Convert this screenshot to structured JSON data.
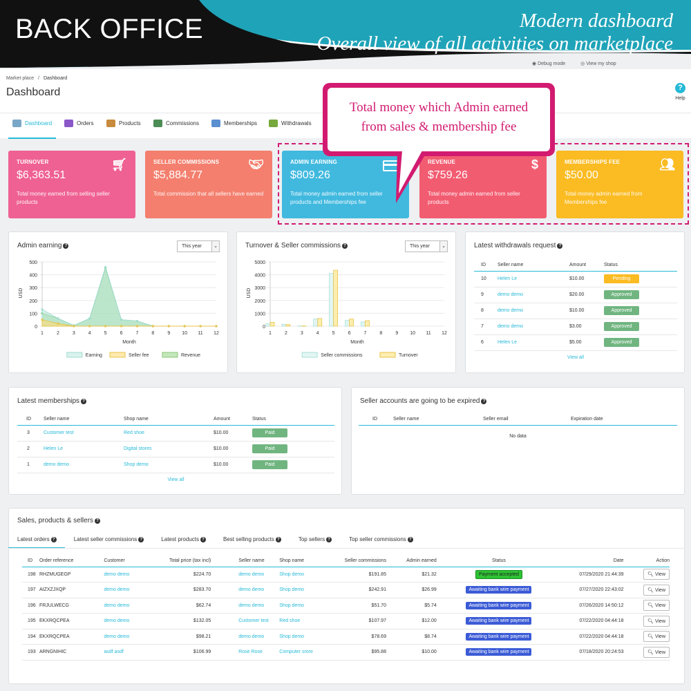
{
  "banner": {
    "title": "BACK OFFICE",
    "sub1": "Modern dashboard",
    "sub2": "Overall view of all activities on marketplace"
  },
  "topbar": {
    "debug": "Debug mode",
    "view_shop": "View my shop"
  },
  "breadcrumb": {
    "parent": "Market place",
    "sep": "/",
    "current": "Dashboard"
  },
  "page_title": "Dashboard",
  "help": "Help",
  "tabs": [
    {
      "label": "Dashboard"
    },
    {
      "label": "Orders"
    },
    {
      "label": "Products"
    },
    {
      "label": "Commissions"
    },
    {
      "label": "Memberships"
    },
    {
      "label": "Withdrawals"
    }
  ],
  "callout": {
    "line1": "Total money which Admin earned",
    "line2": "from sales & membership fee"
  },
  "kpis": [
    {
      "label": "TURNOVER",
      "value": "$6,363.51",
      "desc": "Total money earned from selling seller products",
      "color": "#ef6192",
      "icon": "cart-icon"
    },
    {
      "label": "SELLER COMMISSIONS",
      "value": "$5,884.77",
      "desc": "Total commission that all sellers have earned",
      "color": "#f47f6e",
      "icon": "handshake-icon"
    },
    {
      "label": "ADMIN EARNING",
      "value": "$809.26",
      "desc": "Total money admin earned from seller products and Memberships fee",
      "color": "#41b9df",
      "icon": "credit-card-icon"
    },
    {
      "label": "REVENUE",
      "value": "$759.26",
      "desc": "Total money admin earned from seller products",
      "color": "#f25c71",
      "icon": "dollar-icon"
    },
    {
      "label": "MEMBERSHIPS FEE",
      "value": "$50.00",
      "desc": "Total money admin earned from Memberships fee",
      "color": "#fbbb22",
      "icon": "users-icon"
    }
  ],
  "admin_chart": {
    "title": "Admin earning",
    "select": "This year",
    "ylabel": "USD",
    "xlabel": "Month",
    "legend": [
      "Earning",
      "Seller fee",
      "Revenue"
    ]
  },
  "turnover_chart": {
    "title": "Turnover & Seller commissions",
    "select": "This year",
    "ylabel": "USD",
    "xlabel": "Month",
    "legend": [
      "Seller commissions",
      "Turnover"
    ]
  },
  "chart_data": [
    {
      "type": "area",
      "title": "Admin earning",
      "xlabel": "Month",
      "ylabel": "USD",
      "x": [
        1,
        2,
        3,
        4,
        5,
        6,
        7,
        8,
        9,
        10,
        11,
        12
      ],
      "ylim": [
        0,
        500
      ],
      "yticks": [
        0,
        100,
        200,
        300,
        400,
        500
      ],
      "series": [
        {
          "name": "Earning",
          "values": [
            130,
            60,
            5,
            60,
            460,
            50,
            40,
            0,
            0,
            0,
            0,
            0
          ]
        },
        {
          "name": "Seller fee",
          "values": [
            50,
            20,
            0,
            0,
            0,
            0,
            0,
            0,
            0,
            0,
            0,
            0
          ]
        },
        {
          "name": "Revenue",
          "values": [
            100,
            60,
            5,
            60,
            450,
            50,
            40,
            0,
            0,
            0,
            0,
            0
          ]
        }
      ]
    },
    {
      "type": "bar",
      "title": "Turnover & Seller commissions",
      "xlabel": "Month",
      "ylabel": "USD",
      "x": [
        1,
        2,
        3,
        4,
        5,
        6,
        7,
        8,
        9,
        10,
        11,
        12
      ],
      "ylim": [
        0,
        5000
      ],
      "yticks": [
        0,
        1000,
        2000,
        3000,
        4000,
        5000
      ],
      "series": [
        {
          "name": "Seller commissions",
          "values": [
            200,
            150,
            20,
            550,
            4100,
            450,
            330,
            0,
            0,
            0,
            0,
            0
          ]
        },
        {
          "name": "Turnover",
          "values": [
            300,
            120,
            20,
            600,
            4350,
            550,
            430,
            0,
            0,
            0,
            0,
            0
          ]
        }
      ]
    }
  ],
  "withdrawals": {
    "title": "Latest withdrawals request",
    "headers": [
      "ID",
      "Seller name",
      "Amount",
      "Status"
    ],
    "rows": [
      [
        "10",
        "Helen Le",
        "$10.00",
        "Pending"
      ],
      [
        "9",
        "demo demo",
        "$20.00",
        "Approved"
      ],
      [
        "8",
        "demo demo",
        "$10.00",
        "Approved"
      ],
      [
        "7",
        "demo demo",
        "$3.00",
        "Approved"
      ],
      [
        "6",
        "Helen Le",
        "$5.00",
        "Approved"
      ]
    ],
    "view_all": "View all"
  },
  "memberships": {
    "title": "Latest memberships",
    "headers": [
      "ID",
      "Seller name",
      "Shop name",
      "Amount",
      "Status"
    ],
    "rows": [
      [
        "3",
        "Customer test",
        "Red shoe",
        "$10.00",
        "Paid"
      ],
      [
        "2",
        "Helen Le",
        "Digital stores",
        "$10.00",
        "Paid"
      ],
      [
        "1",
        "demo demo",
        "Shop demo",
        "$10.00",
        "Paid"
      ]
    ],
    "view_all": "View all"
  },
  "expired": {
    "title": "Seller accounts are going to be expired",
    "headers": [
      "ID",
      "Seller name",
      "Seller email",
      "Expiration date"
    ],
    "empty": "No data"
  },
  "sales": {
    "title": "Sales, products & sellers",
    "tabs": [
      "Latest orders",
      "Latest seller commissions",
      "Latest products",
      "Best selling products",
      "Top sellers",
      "Top seller commissions"
    ],
    "headers": [
      "ID",
      "Order reference",
      "Customer",
      "Total price (tax incl)",
      "Seller name",
      "Shop name",
      "Seller commissions",
      "Admin earned",
      "Status",
      "Date",
      "Action"
    ],
    "rows": [
      [
        "198",
        "RHZMUGEGP",
        "demo demo",
        "$224.70",
        "demo demo",
        "Shop demo",
        "$191.85",
        "$21.32",
        "Payment accepted",
        "07/29/2020 21:44:39",
        "View"
      ],
      [
        "197",
        "AIZXZJXQP",
        "demo demo",
        "$283.70",
        "demo demo",
        "Shop demo",
        "$242.91",
        "$26.99",
        "Awaiting bank wire payment",
        "07/27/2020 22:43:02",
        "View"
      ],
      [
        "196",
        "FRJULWECG",
        "demo demo",
        "$62.74",
        "demo demo",
        "Shop demo",
        "$51.70",
        "$5.74",
        "Awaiting bank wire payment",
        "07/26/2020 14:50:12",
        "View"
      ],
      [
        "195",
        "EKXRQCPEA",
        "demo demo",
        "$132.05",
        "Customer test",
        "Red shoe",
        "$107.97",
        "$12.00",
        "Awaiting bank wire payment",
        "07/22/2020 04:44:18",
        "View"
      ],
      [
        "194",
        "EKXRQCPEA",
        "demo demo",
        "$98.21",
        "demo demo",
        "Shop demo",
        "$78.69",
        "$8.74",
        "Awaiting bank wire payment",
        "07/22/2020 04:44:18",
        "View"
      ],
      [
        "193",
        "ARNGNIHIC",
        "asdf asdf",
        "$106.99",
        "Rose Rose",
        "Computer srore",
        "$95.88",
        "$10.00",
        "Awaiting bank wire payment",
        "07/18/2020 20:24:53",
        "View"
      ]
    ]
  },
  "colors": {
    "accent": "#25b9d7",
    "callout": "#d21b70",
    "banner_teal": "#1fa3b8"
  }
}
